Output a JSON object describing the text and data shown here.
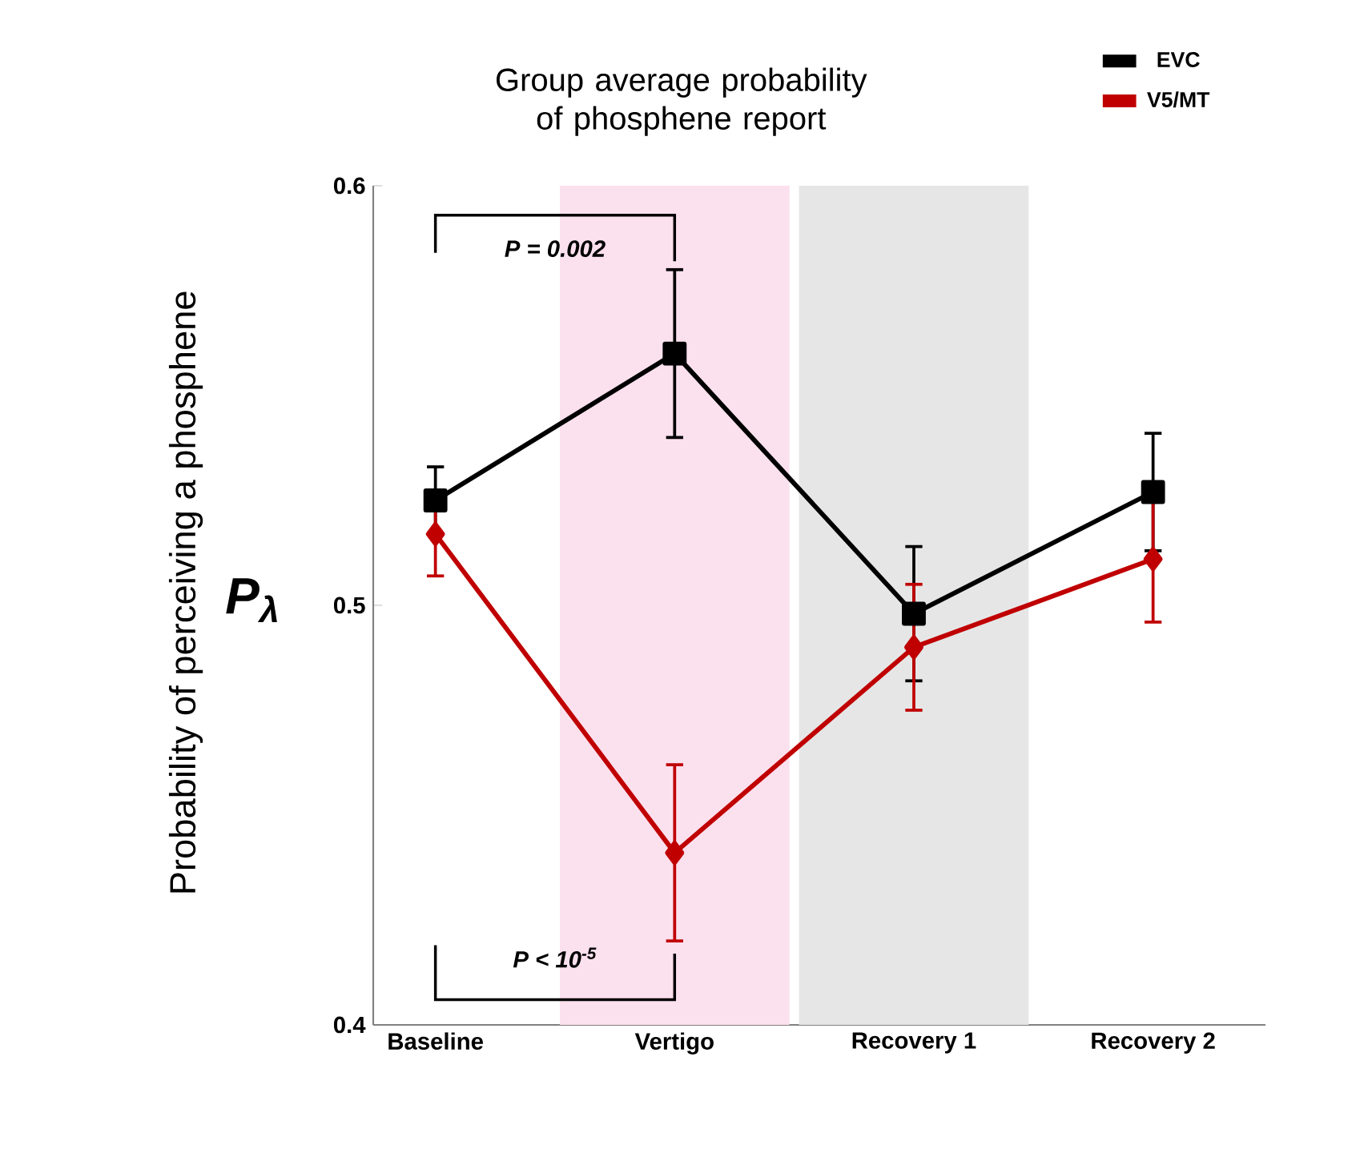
{
  "chart_data": {
    "type": "line",
    "title": "Group average probability of phosphene report",
    "ylabel": "Probability of perceiving a phosphene",
    "annotations": [
      "P$_{λ}$",
      "P = 0.002",
      "P < 10$^{-5}$"
    ],
    "categories": [
      "Baseline",
      "Vertigo",
      "Recovery 1",
      "Recovery 2"
    ],
    "series": [
      {
        "name": "EVC",
        "color": "#000000",
        "marker": "square",
        "values": [
          0.525,
          0.56,
          0.498,
          0.527
        ],
        "errors": [
          0.008,
          0.02,
          0.016,
          0.014
        ]
      },
      {
        "name": "V5/MT",
        "color": "#c00000",
        "marker": "diamond",
        "values": [
          0.517,
          0.441,
          0.49,
          0.511
        ],
        "errors": [
          0.01,
          0.021,
          0.015,
          0.015
        ]
      }
    ],
    "bands": [
      {
        "axis": "x",
        "from": "Vertigo",
        "to": "Vertigo",
        "color": "#fbe0ee"
      },
      {
        "axis": "x",
        "from": "Recovery 1",
        "to": "Recovery 1",
        "color": "#e6e6e6"
      }
    ],
    "ylim": [
      0.4,
      0.6
    ],
    "yticks": [
      0.4,
      0.5,
      0.6
    ],
    "legend": "top right",
    "grid": false
  }
}
